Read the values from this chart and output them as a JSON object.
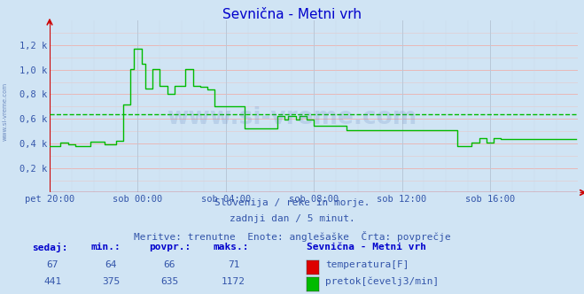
{
  "title": "Sevnična - Metni vrh",
  "bg_color": "#d0e4f4",
  "plot_bg_color": "#d0e4f4",
  "x_labels": [
    "pet 20:00",
    "sob 00:00",
    "sob 04:00",
    "sob 08:00",
    "sob 12:00",
    "sob 16:00"
  ],
  "ylim": [
    0,
    1400
  ],
  "ytick_vals": [
    200,
    400,
    600,
    800,
    1000,
    1200
  ],
  "ytick_labels": [
    "0,2 k",
    "0,4 k",
    "0,6 k",
    "0,8 k",
    "1,0 k",
    "1,2 k"
  ],
  "avg_flow": 635,
  "subtitle1": "Slovenija / reke in morje.",
  "subtitle2": "zadnji dan / 5 minut.",
  "subtitle3": "Meritve: trenutne  Enote: anglešaške  Črta: povprečje",
  "table_headers": [
    "sedaj:",
    "min.:",
    "povpr.:",
    "maks.:"
  ],
  "table_temp": [
    "67",
    "64",
    "66",
    "71"
  ],
  "table_flow": [
    "441",
    "375",
    "635",
    "1172"
  ],
  "legend_title": "Sevnična - Metni vrh",
  "legend_temp_label": "temperatura[F]",
  "legend_flow_label": "pretok[čevelj3/min]",
  "temp_color": "#dd0000",
  "flow_color": "#00bb00",
  "avg_line_color": "#00bb00",
  "title_color": "#0000cc",
  "text_color": "#3355aa",
  "watermark": "www.si-vreme.com"
}
